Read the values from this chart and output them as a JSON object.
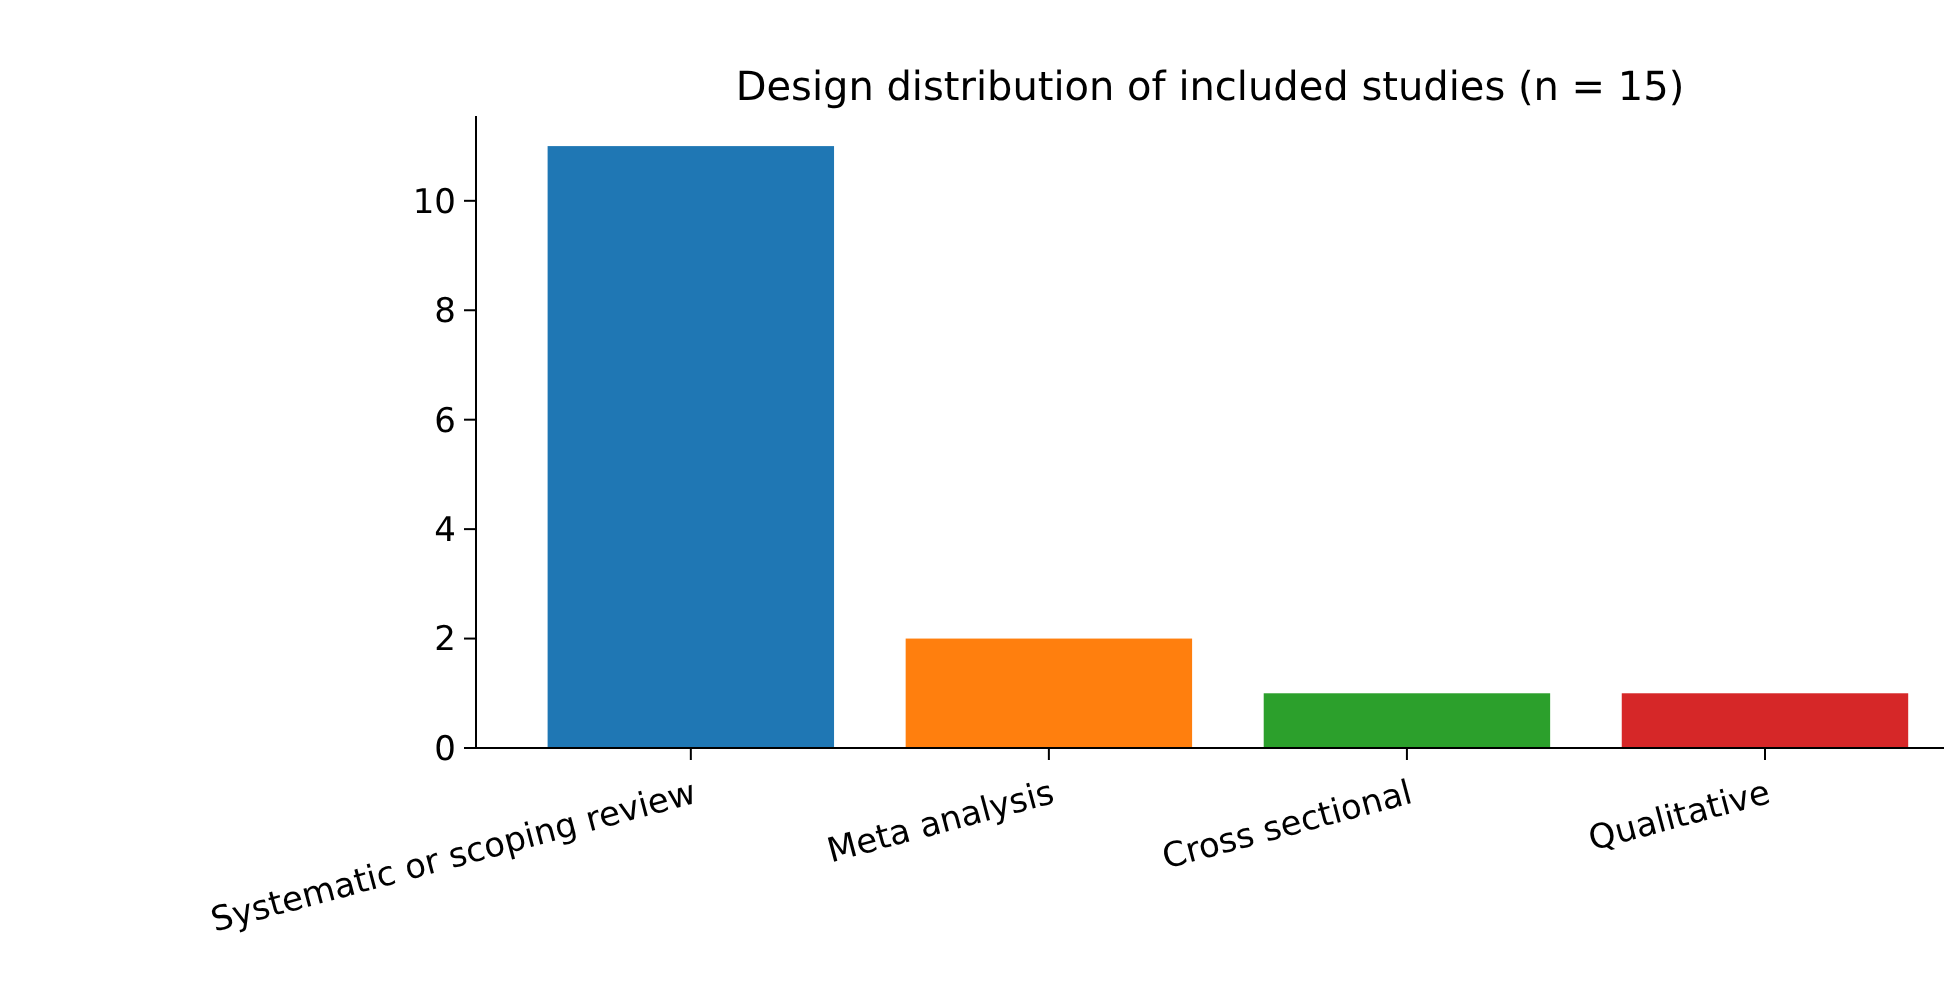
{
  "chart_data": {
    "type": "bar",
    "title": "Design distribution of included studies (n = 15)",
    "categories": [
      "Systematic or scoping review",
      "Meta analysis",
      "Cross sectional",
      "Qualitative"
    ],
    "values": [
      11,
      2,
      1,
      1
    ],
    "colors": [
      "#1f77b4",
      "#ff7f0e",
      "#2ca02c",
      "#d62728"
    ],
    "ylim": [
      0,
      11.55
    ],
    "yticks": [
      0,
      2,
      4,
      6,
      8,
      10
    ],
    "grid": false
  }
}
